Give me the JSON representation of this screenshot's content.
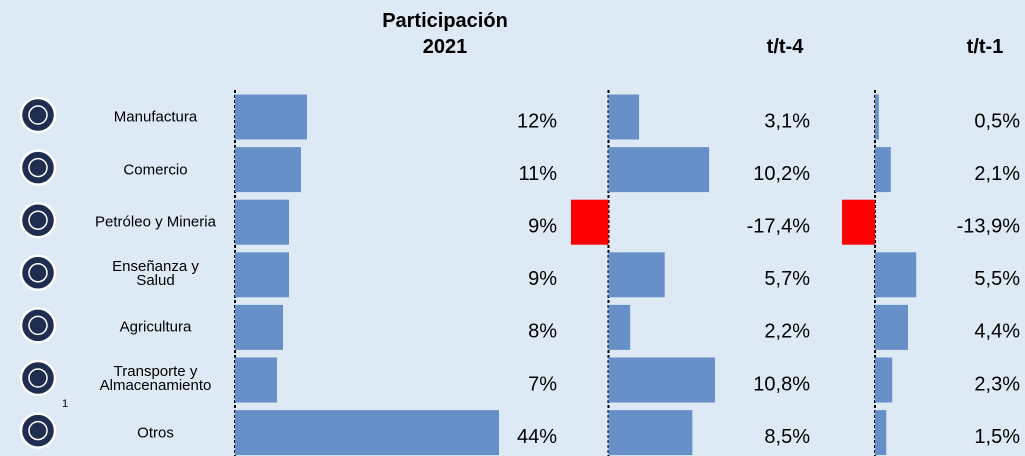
{
  "chart_data": [
    {
      "type": "hbar",
      "title": "Participación 2021",
      "categories": [
        "Manufactura",
        "Comercio",
        "Petróleo y Mineria",
        "Enseñanza y\nSalud",
        "Agricultura",
        "Transporte y\nAlmacenamiento",
        "Otros"
      ],
      "values": [
        12,
        11,
        9,
        9,
        8,
        7,
        44
      ],
      "value_labels": [
        "12%",
        "11%",
        "9%",
        "9%",
        "8%",
        "7%",
        "44%"
      ],
      "color": "#6890c8",
      "negative_color": "#ff0000",
      "xlim": [
        0,
        44.5
      ]
    },
    {
      "type": "hbar",
      "title": "t/t-4",
      "values": [
        3.1,
        10.2,
        -17.4,
        5.7,
        2.2,
        10.8,
        8.5
      ],
      "value_labels": [
        "3,1%",
        "10,2%",
        "-17,4%",
        "5,7%",
        "2,2%",
        "10,8%",
        "8,5%"
      ],
      "color": "#6890c8",
      "negative_color": "#ff0000",
      "xlim": [
        -3.8,
        11
      ]
    },
    {
      "type": "hbar",
      "title": "t/t-1",
      "values": [
        0.5,
        2.1,
        -13.9,
        5.5,
        4.4,
        2.3,
        1.5
      ],
      "value_labels": [
        "0,5%",
        "2,1%",
        "-13,9%",
        "5,5%",
        "4,4%",
        "2,3%",
        "1,5%"
      ],
      "color": "#6890c8",
      "negative_color": "#ff0000",
      "xlim": [
        -4.4,
        6
      ]
    }
  ],
  "footnote": "1"
}
